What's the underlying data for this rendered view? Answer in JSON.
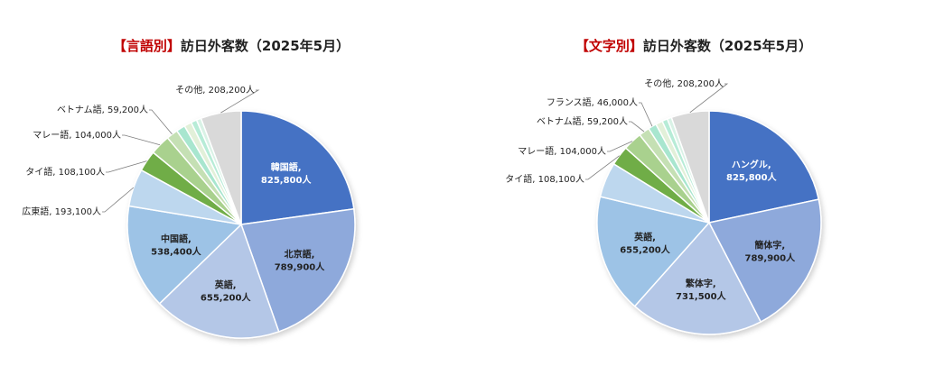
{
  "colors": {
    "title_accent": "#c00000",
    "label_text": "#222222",
    "inner_label_light": "#ffffff"
  },
  "chart_data": [
    {
      "type": "pie",
      "title": "訪日外客数（2025年5月）",
      "title_tag": "【言語別】",
      "slices": [
        {
          "name": "韓国語",
          "value": 825800,
          "label": "825,800人",
          "color": "#4472c4",
          "inside": true,
          "light": true
        },
        {
          "name": "北京語",
          "value": 789900,
          "label": "789,900人",
          "color": "#8ea9db",
          "inside": true
        },
        {
          "name": "英語",
          "value": 655200,
          "label": "655,200人",
          "color": "#b4c7e7",
          "inside": true
        },
        {
          "name": "中国語",
          "value": 538400,
          "label": "538,400人",
          "color": "#9dc3e6",
          "inside": true
        },
        {
          "name": "広東語",
          "value": 193100,
          "label": "193,100人",
          "color": "#bdd7ee",
          "inside": false
        },
        {
          "name": "タイ語",
          "value": 108100,
          "label": "108,100人",
          "color": "#70ad47",
          "inside": false
        },
        {
          "name": "マレー語",
          "value": 104000,
          "label": "104,000人",
          "color": "#a9d18e",
          "inside": false
        },
        {
          "name": "ベトナム語",
          "value": 59200,
          "label": "59,200人",
          "color": "#c5e0b4",
          "inside": false
        },
        {
          "name": "",
          "value": 46000,
          "label": "",
          "color": "#a8e6cf",
          "inside": false
        },
        {
          "name": "",
          "value": 38000,
          "label": "",
          "color": "#e2f0d9",
          "inside": false
        },
        {
          "name": "",
          "value": 30000,
          "label": "",
          "color": "#b7ecd7",
          "inside": false
        },
        {
          "name": "",
          "value": 24000,
          "label": "",
          "color": "#d9f2e6",
          "inside": false
        },
        {
          "name": "その他",
          "value": 208200,
          "label": "208,200人",
          "color": "#d9d9d9",
          "inside": false
        }
      ]
    },
    {
      "type": "pie",
      "title": "訪日外客数（2025年5月）",
      "title_tag": "【文字別】",
      "slices": [
        {
          "name": "ハングル",
          "value": 825800,
          "label": "825,800人",
          "color": "#4472c4",
          "inside": true,
          "light": true
        },
        {
          "name": "簡体字",
          "value": 789900,
          "label": "789,900人",
          "color": "#8ea9db",
          "inside": true
        },
        {
          "name": "繁体字",
          "value": 731500,
          "label": "731,500人",
          "color": "#b4c7e7",
          "inside": true
        },
        {
          "name": "英語",
          "value": 655200,
          "label": "655,200人",
          "color": "#9dc3e6",
          "inside": true
        },
        {
          "name": "",
          "value": 193100,
          "label": "",
          "color": "#bdd7ee",
          "inside": false
        },
        {
          "name": "タイ語",
          "value": 108100,
          "label": "108,100人",
          "color": "#70ad47",
          "inside": false
        },
        {
          "name": "マレー語",
          "value": 104000,
          "label": "104,000人",
          "color": "#a9d18e",
          "inside": false
        },
        {
          "name": "ベトナム語",
          "value": 59200,
          "label": "59,200人",
          "color": "#c5e0b4",
          "inside": false
        },
        {
          "name": "フランス語",
          "value": 46000,
          "label": "46,000人",
          "color": "#a8e6cf",
          "inside": false
        },
        {
          "name": "",
          "value": 38000,
          "label": "",
          "color": "#e2f0d9",
          "inside": false
        },
        {
          "name": "",
          "value": 30000,
          "label": "",
          "color": "#b7ecd7",
          "inside": false
        },
        {
          "name": "",
          "value": 24000,
          "label": "",
          "color": "#d9f2e6",
          "inside": false
        },
        {
          "name": "その他",
          "value": 208200,
          "label": "208,200人",
          "color": "#d9d9d9",
          "inside": false
        }
      ]
    }
  ]
}
